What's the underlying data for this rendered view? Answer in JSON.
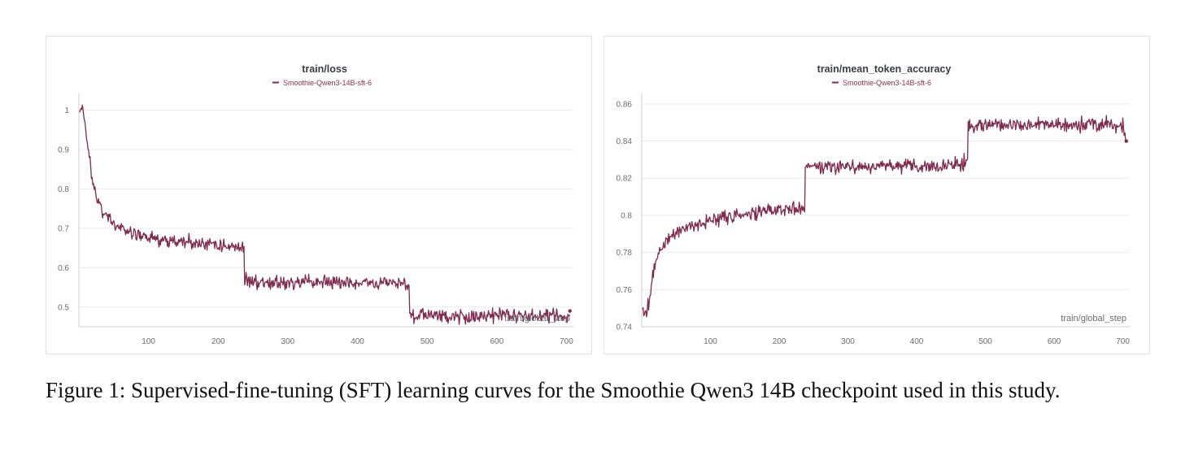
{
  "colors": {
    "series": "#7f2a4f",
    "grid": "#ececef",
    "text": "#6b6b75",
    "title": "#3b3b45"
  },
  "caption": "Figure 1: Supervised-fine-tuning (SFT) learning curves for the Smoothie Qwen3 14B checkpoint used in this study.",
  "chart_data": [
    {
      "type": "line",
      "title": "train/loss",
      "xlabel": "train/global_step",
      "ylabel": "",
      "xlim": [
        0,
        710
      ],
      "ylim": [
        0.45,
        1.03
      ],
      "xticks": [
        100,
        200,
        300,
        400,
        500,
        600,
        700
      ],
      "yticks": [
        0.5,
        0.6,
        0.7,
        0.8,
        0.9,
        1
      ],
      "ytick_labels": [
        "0.5",
        "0.6",
        "0.7",
        "0.8",
        "0.9",
        "1"
      ],
      "grid": true,
      "legend_position": "top-center",
      "series": [
        {
          "name": "Smoothie-Qwen3-14B-sft-6",
          "x": [
            1,
            5,
            10,
            15,
            20,
            25,
            30,
            35,
            40,
            50,
            60,
            70,
            80,
            90,
            100,
            110,
            120,
            130,
            140,
            150,
            160,
            170,
            180,
            190,
            200,
            210,
            220,
            230,
            237,
            238,
            245,
            250,
            260,
            270,
            280,
            290,
            300,
            310,
            320,
            330,
            340,
            350,
            360,
            370,
            380,
            390,
            400,
            410,
            420,
            430,
            440,
            450,
            460,
            470,
            474,
            475,
            480,
            490,
            500,
            510,
            520,
            530,
            540,
            550,
            560,
            570,
            580,
            590,
            600,
            610,
            620,
            630,
            640,
            650,
            660,
            670,
            680,
            690,
            700,
            705
          ],
          "y": [
            1.0,
            1.0,
            0.95,
            0.88,
            0.82,
            0.77,
            0.76,
            0.74,
            0.73,
            0.71,
            0.7,
            0.69,
            0.685,
            0.68,
            0.675,
            0.672,
            0.67,
            0.668,
            0.666,
            0.664,
            0.665,
            0.662,
            0.661,
            0.66,
            0.658,
            0.656,
            0.654,
            0.652,
            0.65,
            0.57,
            0.568,
            0.566,
            0.564,
            0.563,
            0.562,
            0.561,
            0.56,
            0.562,
            0.561,
            0.56,
            0.563,
            0.565,
            0.562,
            0.561,
            0.56,
            0.559,
            0.56,
            0.561,
            0.559,
            0.56,
            0.562,
            0.561,
            0.56,
            0.559,
            0.558,
            0.485,
            0.482,
            0.48,
            0.478,
            0.479,
            0.477,
            0.476,
            0.478,
            0.477,
            0.476,
            0.478,
            0.479,
            0.477,
            0.476,
            0.477,
            0.478,
            0.476,
            0.477,
            0.478,
            0.476,
            0.477,
            0.478,
            0.476,
            0.477,
            0.49
          ]
        }
      ]
    },
    {
      "type": "line",
      "title": "train/mean_token_accuracy",
      "xlabel": "train/global_step",
      "ylabel": "",
      "xlim": [
        0,
        710
      ],
      "ylim": [
        0.74,
        0.863
      ],
      "xticks": [
        100,
        200,
        300,
        400,
        500,
        600,
        700
      ],
      "yticks": [
        0.74,
        0.76,
        0.78,
        0.8,
        0.82,
        0.84,
        0.86
      ],
      "ytick_labels": [
        "0.74",
        "0.76",
        "0.78",
        "0.8",
        "0.82",
        "0.84",
        "0.86"
      ],
      "grid": true,
      "legend_position": "top-center",
      "series": [
        {
          "name": "Smoothie-Qwen3-14B-sft-6",
          "x": [
            1,
            5,
            10,
            15,
            20,
            25,
            30,
            40,
            50,
            60,
            70,
            80,
            90,
            100,
            110,
            120,
            130,
            140,
            150,
            160,
            170,
            180,
            190,
            200,
            210,
            220,
            230,
            237,
            238,
            245,
            250,
            260,
            270,
            280,
            290,
            300,
            310,
            320,
            330,
            340,
            350,
            360,
            370,
            380,
            390,
            400,
            410,
            420,
            430,
            440,
            450,
            460,
            470,
            474,
            475,
            480,
            490,
            500,
            510,
            520,
            530,
            540,
            550,
            560,
            570,
            580,
            590,
            600,
            610,
            620,
            630,
            640,
            650,
            660,
            670,
            680,
            690,
            700,
            705
          ],
          "y": [
            0.748,
            0.747,
            0.752,
            0.765,
            0.775,
            0.78,
            0.784,
            0.787,
            0.79,
            0.792,
            0.794,
            0.795,
            0.796,
            0.797,
            0.798,
            0.799,
            0.799,
            0.8,
            0.8,
            0.801,
            0.801,
            0.802,
            0.802,
            0.803,
            0.803,
            0.804,
            0.804,
            0.805,
            0.828,
            0.827,
            0.827,
            0.826,
            0.827,
            0.826,
            0.826,
            0.827,
            0.826,
            0.827,
            0.826,
            0.826,
            0.827,
            0.827,
            0.826,
            0.826,
            0.827,
            0.826,
            0.826,
            0.827,
            0.826,
            0.827,
            0.827,
            0.827,
            0.828,
            0.829,
            0.848,
            0.848,
            0.849,
            0.848,
            0.849,
            0.849,
            0.848,
            0.849,
            0.849,
            0.848,
            0.849,
            0.849,
            0.848,
            0.849,
            0.849,
            0.848,
            0.849,
            0.849,
            0.849,
            0.848,
            0.849,
            0.849,
            0.848,
            0.849,
            0.84
          ]
        }
      ]
    }
  ]
}
